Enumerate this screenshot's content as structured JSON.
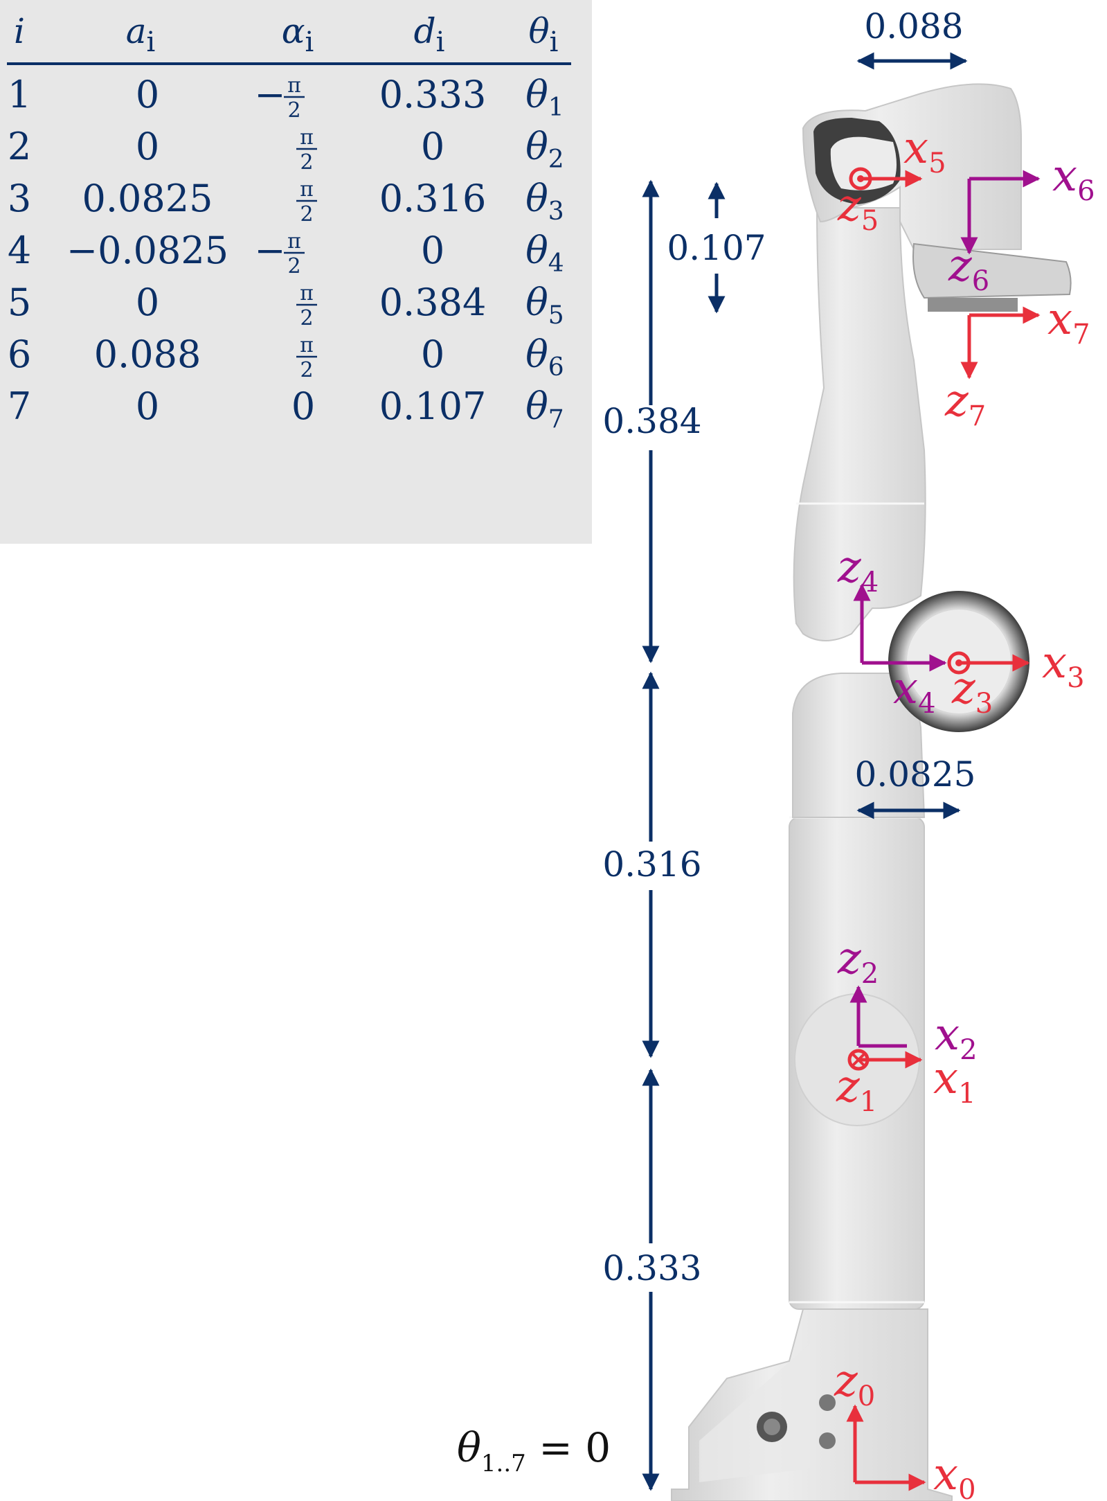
{
  "table": {
    "headers": [
      "i",
      "a",
      "α",
      "d",
      "θ"
    ],
    "header_subscript": "i",
    "rows": [
      {
        "i": "1",
        "a": "0",
        "alpha_sign": "−",
        "alpha": "π/2",
        "alpha_num": "π",
        "alpha_den": "2",
        "d": "0.333",
        "theta": "θ",
        "theta_sub": "1"
      },
      {
        "i": "2",
        "a": "0",
        "alpha_sign": "",
        "alpha": "π/2",
        "alpha_num": "π",
        "alpha_den": "2",
        "d": "0",
        "theta": "θ",
        "theta_sub": "2"
      },
      {
        "i": "3",
        "a": "0.0825",
        "alpha_sign": "",
        "alpha": "π/2",
        "alpha_num": "π",
        "alpha_den": "2",
        "d": "0.316",
        "theta": "θ",
        "theta_sub": "3"
      },
      {
        "i": "4",
        "a": "−0.0825",
        "alpha_sign": "−",
        "alpha": "π/2",
        "alpha_num": "π",
        "alpha_den": "2",
        "d": "0",
        "theta": "θ",
        "theta_sub": "4"
      },
      {
        "i": "5",
        "a": "0",
        "alpha_sign": "",
        "alpha": "π/2",
        "alpha_num": "π",
        "alpha_den": "2",
        "d": "0.384",
        "theta": "θ",
        "theta_sub": "5"
      },
      {
        "i": "6",
        "a": "0.088",
        "alpha_sign": "",
        "alpha": "π/2",
        "alpha_num": "π",
        "alpha_den": "2",
        "d": "0",
        "theta": "θ",
        "theta_sub": "6"
      },
      {
        "i": "7",
        "a": "0",
        "alpha_sign": "",
        "alpha": "0",
        "alpha_num": "",
        "alpha_den": "",
        "d": "0.107",
        "theta": "θ",
        "theta_sub": "7"
      }
    ]
  },
  "dimensions": {
    "top_width": "0.088",
    "wrist_offset": "0.107",
    "upper_length": "0.384",
    "elbow_offset": "0.0825",
    "mid_length": "0.316",
    "base_length": "0.333"
  },
  "frames": {
    "x0": {
      "letter": "x",
      "sub": "0"
    },
    "z0": {
      "letter": "z",
      "sub": "0"
    },
    "x1": {
      "letter": "x",
      "sub": "1"
    },
    "z1": {
      "letter": "z",
      "sub": "1"
    },
    "x2": {
      "letter": "x",
      "sub": "2"
    },
    "z2": {
      "letter": "z",
      "sub": "2"
    },
    "x3": {
      "letter": "x",
      "sub": "3"
    },
    "z3": {
      "letter": "z",
      "sub": "3"
    },
    "x4": {
      "letter": "x",
      "sub": "4"
    },
    "z4": {
      "letter": "z",
      "sub": "4"
    },
    "x5": {
      "letter": "x",
      "sub": "5"
    },
    "z5": {
      "letter": "z",
      "sub": "5"
    },
    "x6": {
      "letter": "x",
      "sub": "6"
    },
    "z6": {
      "letter": "z",
      "sub": "6"
    },
    "x7": {
      "letter": "x",
      "sub": "7"
    },
    "z7": {
      "letter": "z",
      "sub": "7"
    }
  },
  "joint_config": {
    "theta": "θ",
    "sub": "1..7",
    "rest": " = 0"
  },
  "colors": {
    "navy": "#0b2f66",
    "red": "#e8303c",
    "magenta": "#a0108e",
    "table_bg": "#e7e7e7",
    "robot_body": "#e2e2e2",
    "robot_dark": "#4a4a4a"
  }
}
